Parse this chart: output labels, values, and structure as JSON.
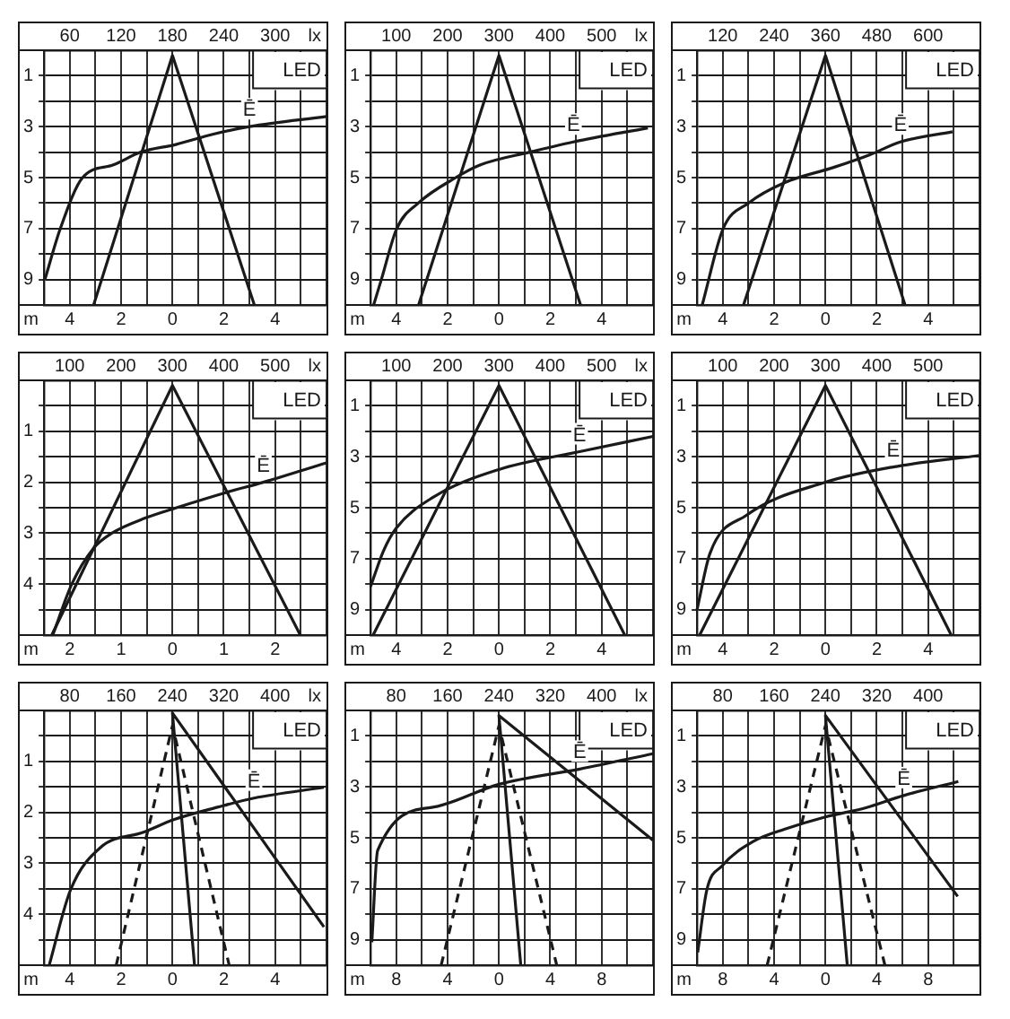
{
  "chart_data": [
    {
      "type": "line",
      "title": "LED",
      "xlabel": "m",
      "x2label": "lx",
      "grid": true,
      "marker": "none",
      "xlim": [
        -5,
        6
      ],
      "xticks": [
        {
          "value": -5,
          "label": null
        },
        {
          "value": -4,
          "label": "4"
        },
        {
          "value": -3,
          "label": null
        },
        {
          "value": -2,
          "label": "2"
        },
        {
          "value": -1,
          "label": null
        },
        0,
        {
          "value": 1,
          "label": null
        },
        2,
        {
          "value": 3,
          "label": null
        },
        4,
        {
          "value": 5,
          "label": null
        },
        {
          "value": 6,
          "label": null
        }
      ],
      "x2lim": [
        30,
        360
      ],
      "x2ticks": [
        60,
        120,
        180,
        240,
        300
      ],
      "ylim": [
        10,
        0
      ],
      "yticks": [
        {
          "value": 0,
          "label": null
        },
        1,
        {
          "value": 2,
          "label": null
        },
        3,
        {
          "value": 4,
          "label": null
        },
        5,
        {
          "value": 6,
          "label": null
        },
        7,
        {
          "value": 8,
          "label": null
        },
        9,
        {
          "value": 10,
          "label": null
        }
      ],
      "series": [
        {
          "type": "line",
          "color": "#1a1a1a",
          "x": [
            -3.07,
            0,
            3.19
          ],
          "values": [
            10,
            0.2,
            10
          ]
        },
        {
          "type": "line",
          "axis": "x2",
          "name": "Ē",
          "color": "#1a1a1a",
          "x": [
            31,
            49,
            75,
            111,
            143,
            184,
            227,
            270,
            360
          ],
          "values": [
            9,
            7,
            5,
            4.5,
            4,
            3.7,
            3.3,
            3,
            2.6
          ]
        }
      ]
    },
    {
      "type": "line",
      "title": "LED",
      "xlabel": "m",
      "x2label": "lx",
      "grid": true,
      "marker": "none",
      "xlim": [
        -5,
        6
      ],
      "xticks": [
        {
          "value": -5,
          "label": null
        },
        {
          "value": -4,
          "label": "4"
        },
        {
          "value": -3,
          "label": null
        },
        {
          "value": -2,
          "label": "2"
        },
        {
          "value": -1,
          "label": null
        },
        0,
        {
          "value": 1,
          "label": null
        },
        2,
        {
          "value": 3,
          "label": null
        },
        4,
        {
          "value": 5,
          "label": null
        },
        {
          "value": 6,
          "label": null
        }
      ],
      "x2lim": [
        50,
        600
      ],
      "x2ticks": [
        100,
        200,
        300,
        400,
        500
      ],
      "ylim": [
        10,
        0
      ],
      "yticks": [
        {
          "value": 0,
          "label": null
        },
        1,
        {
          "value": 2,
          "label": null
        },
        3,
        {
          "value": 4,
          "label": null
        },
        5,
        {
          "value": 6,
          "label": null
        },
        7,
        {
          "value": 8,
          "label": null
        },
        9,
        {
          "value": 10,
          "label": null
        }
      ],
      "series": [
        {
          "type": "line",
          "color": "#1a1a1a",
          "x": [
            -3.13,
            0,
            3.18
          ],
          "values": [
            10,
            0.2,
            10
          ]
        },
        {
          "type": "line",
          "axis": "x2",
          "name": "Ē",
          "color": "#1a1a1a",
          "x": [
            56,
            71,
            101,
            143,
            216,
            264,
            360,
            445,
            590
          ],
          "values": [
            10,
            9,
            7,
            6,
            5,
            4.5,
            4,
            3.6,
            3.05
          ]
        }
      ]
    },
    {
      "type": "line",
      "title": "LED",
      "xlabel": "m",
      "grid": true,
      "marker": "none",
      "xlim": [
        -5,
        6
      ],
      "xticks": [
        {
          "value": -5,
          "label": null
        },
        {
          "value": -4,
          "label": "4"
        },
        {
          "value": -3,
          "label": null
        },
        {
          "value": -2,
          "label": "2"
        },
        {
          "value": -1,
          "label": null
        },
        0,
        {
          "value": 1,
          "label": null
        },
        2,
        {
          "value": 3,
          "label": null
        },
        4,
        {
          "value": 5,
          "label": null
        },
        {
          "value": 6,
          "label": null
        }
      ],
      "x2lim": [
        60,
        720
      ],
      "x2ticks": [
        120,
        240,
        360,
        480,
        600
      ],
      "ylim": [
        10,
        0
      ],
      "yticks": [
        {
          "value": 0,
          "label": null
        },
        1,
        {
          "value": 2,
          "label": null
        },
        3,
        {
          "value": 4,
          "label": null
        },
        5,
        {
          "value": 6,
          "label": null
        },
        7,
        {
          "value": 8,
          "label": null
        },
        9,
        {
          "value": 10,
          "label": null
        }
      ],
      "series": [
        {
          "type": "line",
          "color": "#1a1a1a",
          "x": [
            -3.19,
            0,
            3.1
          ],
          "values": [
            10,
            0.2,
            10
          ]
        },
        {
          "type": "line",
          "axis": "x2",
          "name": "Ē",
          "color": "#1a1a1a",
          "x": [
            72,
            121,
            180,
            264,
            379,
            464,
            535,
            657
          ],
          "values": [
            10,
            7,
            6,
            5.2,
            4.6,
            4.1,
            3.6,
            3.2
          ]
        }
      ]
    },
    {
      "type": "line",
      "title": "LED",
      "xlabel": "m",
      "x2label": "lx",
      "grid": true,
      "marker": "none",
      "xlim": [
        -2.5,
        3
      ],
      "xticks": [
        {
          "value": -2.5,
          "label": null
        },
        {
          "value": -2,
          "label": "2"
        },
        {
          "value": -1.5,
          "label": null
        },
        {
          "value": -1,
          "label": "1"
        },
        {
          "value": -0.5,
          "label": null
        },
        0,
        {
          "value": 0.5,
          "label": null
        },
        1,
        {
          "value": 1.5,
          "label": null
        },
        2,
        {
          "value": 2.5,
          "label": null
        },
        {
          "value": 3,
          "label": null
        }
      ],
      "x2lim": [
        50,
        600
      ],
      "x2ticks": [
        100,
        200,
        300,
        400,
        500
      ],
      "ylim": [
        5,
        0
      ],
      "yticks": [
        {
          "value": 0,
          "label": null
        },
        {
          "value": 0.5,
          "label": null
        },
        1,
        {
          "value": 1.5,
          "label": null
        },
        2,
        {
          "value": 2.5,
          "label": null
        },
        3,
        {
          "value": 3.5,
          "label": null
        },
        4,
        {
          "value": 4.5,
          "label": null
        },
        {
          "value": 5,
          "label": null
        }
      ],
      "series": [
        {
          "type": "line",
          "color": "#1a1a1a",
          "x": [
            -2.35,
            0,
            2.49
          ],
          "values": [
            5,
            0.1,
            5
          ]
        },
        {
          "type": "line",
          "axis": "x2",
          "name": "Ē",
          "color": "#1a1a1a",
          "x": [
            67,
            104,
            146,
            182,
            248,
            308,
            405,
            477,
            600
          ],
          "values": [
            5,
            4,
            3.3,
            3,
            2.7,
            2.5,
            2.2,
            2,
            1.62
          ]
        }
      ]
    },
    {
      "type": "line",
      "title": "LED",
      "xlabel": "m",
      "x2label": "lx",
      "grid": true,
      "marker": "none",
      "xlim": [
        -5,
        6
      ],
      "xticks": [
        {
          "value": -5,
          "label": null
        },
        {
          "value": -4,
          "label": "4"
        },
        {
          "value": -3,
          "label": null
        },
        {
          "value": -2,
          "label": "2"
        },
        {
          "value": -1,
          "label": null
        },
        0,
        {
          "value": 1,
          "label": null
        },
        2,
        {
          "value": 3,
          "label": null
        },
        4,
        {
          "value": 5,
          "label": null
        },
        {
          "value": 6,
          "label": null
        }
      ],
      "x2lim": [
        50,
        600
      ],
      "x2ticks": [
        100,
        200,
        300,
        400,
        500
      ],
      "ylim": [
        10,
        0
      ],
      "yticks": [
        {
          "value": 0,
          "label": null
        },
        1,
        {
          "value": 2,
          "label": null
        },
        3,
        {
          "value": 4,
          "label": null
        },
        5,
        {
          "value": 6,
          "label": null
        },
        7,
        {
          "value": 8,
          "label": null
        },
        9,
        {
          "value": 10,
          "label": null
        }
      ],
      "series": [
        {
          "type": "line",
          "color": "#1a1a1a",
          "x": [
            -4.9,
            0,
            4.9
          ],
          "values": [
            10,
            0.2,
            10
          ]
        },
        {
          "type": "line",
          "axis": "x2",
          "name": "Ē",
          "color": "#1a1a1a",
          "x": [
            50,
            75,
            100,
            171,
            300,
            457,
            600
          ],
          "values": [
            8.1,
            6.7,
            5.8,
            4.6,
            3.5,
            2.8,
            2.2
          ]
        }
      ]
    },
    {
      "type": "line",
      "title": "LED",
      "xlabel": "m",
      "grid": true,
      "marker": "none",
      "xlim": [
        -5,
        6
      ],
      "xticks": [
        {
          "value": -5,
          "label": null
        },
        {
          "value": -4,
          "label": "4"
        },
        {
          "value": -3,
          "label": null
        },
        {
          "value": -2,
          "label": "2"
        },
        {
          "value": -1,
          "label": null
        },
        0,
        {
          "value": 1,
          "label": null
        },
        2,
        {
          "value": 3,
          "label": null
        },
        4,
        {
          "value": 5,
          "label": null
        },
        {
          "value": 6,
          "label": null
        }
      ],
      "x2lim": [
        50,
        600
      ],
      "x2ticks": [
        100,
        200,
        300,
        400,
        500
      ],
      "ylim": [
        10,
        0
      ],
      "yticks": [
        {
          "value": 0,
          "label": null
        },
        1,
        {
          "value": 2,
          "label": null
        },
        3,
        {
          "value": 4,
          "label": null
        },
        5,
        {
          "value": 6,
          "label": null
        },
        7,
        {
          "value": 8,
          "label": null
        },
        9,
        {
          "value": 10,
          "label": null
        }
      ],
      "series": [
        {
          "type": "line",
          "color": "#1a1a1a",
          "x": [
            -4.9,
            0,
            4.9
          ],
          "values": [
            10,
            0.2,
            10
          ]
        },
        {
          "type": "line",
          "axis": "x2",
          "name": "Ē",
          "color": "#1a1a1a",
          "x": [
            50,
            75,
            146,
            300,
            432,
            600
          ],
          "values": [
            9,
            6.8,
            5.3,
            4,
            3.4,
            2.95
          ]
        }
      ]
    },
    {
      "type": "line",
      "title": "LED",
      "xlabel": "m",
      "x2label": "lx",
      "grid": true,
      "marker": "none",
      "xlim": [
        -5,
        6
      ],
      "xticks": [
        {
          "value": -5,
          "label": null
        },
        {
          "value": -4,
          "label": "4"
        },
        {
          "value": -3,
          "label": null
        },
        {
          "value": -2,
          "label": "2"
        },
        {
          "value": -1,
          "label": null
        },
        0,
        {
          "value": 1,
          "label": null
        },
        2,
        {
          "value": 3,
          "label": null
        },
        4,
        {
          "value": 5,
          "label": null
        },
        {
          "value": 6,
          "label": null
        }
      ],
      "x2lim": [
        40,
        480
      ],
      "x2ticks": [
        80,
        160,
        240,
        320,
        400
      ],
      "ylim": [
        5,
        0
      ],
      "yticks": [
        {
          "value": 0,
          "label": null
        },
        {
          "value": 0.5,
          "label": null
        },
        1,
        {
          "value": 1.5,
          "label": null
        },
        2,
        {
          "value": 2.5,
          "label": null
        },
        3,
        {
          "value": 3.5,
          "label": null
        },
        4,
        {
          "value": 4.5,
          "label": null
        },
        {
          "value": 5,
          "label": null
        }
      ],
      "series": [
        {
          "type": "line",
          "line_style": "dashed",
          "color": "#1a1a1a",
          "x": [
            -2.19,
            0,
            2.21
          ],
          "values": [
            5,
            0.3,
            5
          ]
        },
        {
          "type": "line",
          "color": "#1a1a1a",
          "x": [
            0.86,
            0,
            5.9
          ],
          "values": [
            5,
            0.05,
            4.25
          ]
        },
        {
          "type": "line",
          "axis": "x2",
          "name": "Ē",
          "color": "#1a1a1a",
          "x": [
            48,
            81,
            128,
            195,
            243,
            310,
            367,
            476
          ],
          "values": [
            5,
            3.53,
            2.69,
            2.39,
            2.14,
            1.9,
            1.72,
            1.51
          ]
        }
      ]
    },
    {
      "type": "line",
      "title": "LED",
      "xlabel": "m",
      "x2label": "lx",
      "grid": true,
      "marker": "none",
      "xlim": [
        -10,
        12
      ],
      "xticks": [
        {
          "value": -10,
          "label": null
        },
        {
          "value": -8,
          "label": "8"
        },
        {
          "value": -6,
          "label": null
        },
        {
          "value": -4,
          "label": "4"
        },
        {
          "value": -2,
          "label": null
        },
        0,
        {
          "value": 2,
          "label": null
        },
        4,
        {
          "value": 6,
          "label": null
        },
        8,
        {
          "value": 10,
          "label": null
        },
        {
          "value": 12,
          "label": null
        }
      ],
      "x2lim": [
        40,
        480
      ],
      "x2ticks": [
        80,
        160,
        240,
        320,
        400
      ],
      "ylim": [
        10,
        0
      ],
      "yticks": [
        {
          "value": 0,
          "label": null
        },
        1,
        {
          "value": 2,
          "label": null
        },
        3,
        {
          "value": 4,
          "label": null
        },
        5,
        {
          "value": 6,
          "label": null
        },
        7,
        {
          "value": 8,
          "label": null
        },
        9,
        {
          "value": 10,
          "label": null
        }
      ],
      "series": [
        {
          "type": "line",
          "line_style": "dashed",
          "color": "#1a1a1a",
          "x": [
            -4.5,
            0,
            4.5
          ],
          "values": [
            10,
            0.6,
            10
          ]
        },
        {
          "type": "line",
          "color": "#1a1a1a",
          "x": [
            1.7,
            0,
            12
          ],
          "values": [
            10,
            0.2,
            5.1
          ]
        },
        {
          "type": "line",
          "axis": "x2",
          "name": "Ē",
          "color": "#1a1a1a",
          "x": [
            42,
            51,
            137,
            240,
            366,
            480
          ],
          "values": [
            9.1,
            5.5,
            3.8,
            2.9,
            2.3,
            1.7
          ]
        }
      ]
    },
    {
      "type": "line",
      "title": "LED",
      "xlabel": "m",
      "grid": true,
      "marker": "none",
      "xlim": [
        -10,
        12
      ],
      "xticks": [
        {
          "value": -10,
          "label": null
        },
        {
          "value": -8,
          "label": "8"
        },
        {
          "value": -6,
          "label": null
        },
        {
          "value": -4,
          "label": "4"
        },
        {
          "value": -2,
          "label": null
        },
        0,
        {
          "value": 2,
          "label": null
        },
        4,
        {
          "value": 6,
          "label": null
        },
        8,
        {
          "value": 10,
          "label": null
        },
        {
          "value": 12,
          "label": null
        }
      ],
      "x2lim": [
        40,
        480
      ],
      "x2ticks": [
        80,
        160,
        240,
        320,
        400
      ],
      "ylim": [
        10,
        0
      ],
      "yticks": [
        {
          "value": 0,
          "label": null
        },
        1,
        {
          "value": 2,
          "label": null
        },
        3,
        {
          "value": 4,
          "label": null
        },
        5,
        {
          "value": 6,
          "label": null
        },
        7,
        {
          "value": 8,
          "label": null
        },
        9,
        {
          "value": 10,
          "label": null
        }
      ],
      "series": [
        {
          "type": "line",
          "line_style": "dashed",
          "color": "#1a1a1a",
          "x": [
            -4.54,
            0,
            4.63
          ],
          "values": [
            10,
            0.6,
            10
          ]
        },
        {
          "type": "line",
          "color": "#1a1a1a",
          "x": [
            1.7,
            0,
            10.3
          ],
          "values": [
            10,
            0.2,
            7.3
          ]
        },
        {
          "type": "line",
          "axis": "x2",
          "name": "Ē",
          "color": "#1a1a1a",
          "x": [
            41,
            55,
            79,
            128,
            177,
            240,
            303,
            362,
            447
          ],
          "values": [
            9.5,
            7.07,
            6.1,
            5.14,
            4.66,
            4.18,
            3.82,
            3.34,
            2.79
          ]
        }
      ]
    }
  ]
}
